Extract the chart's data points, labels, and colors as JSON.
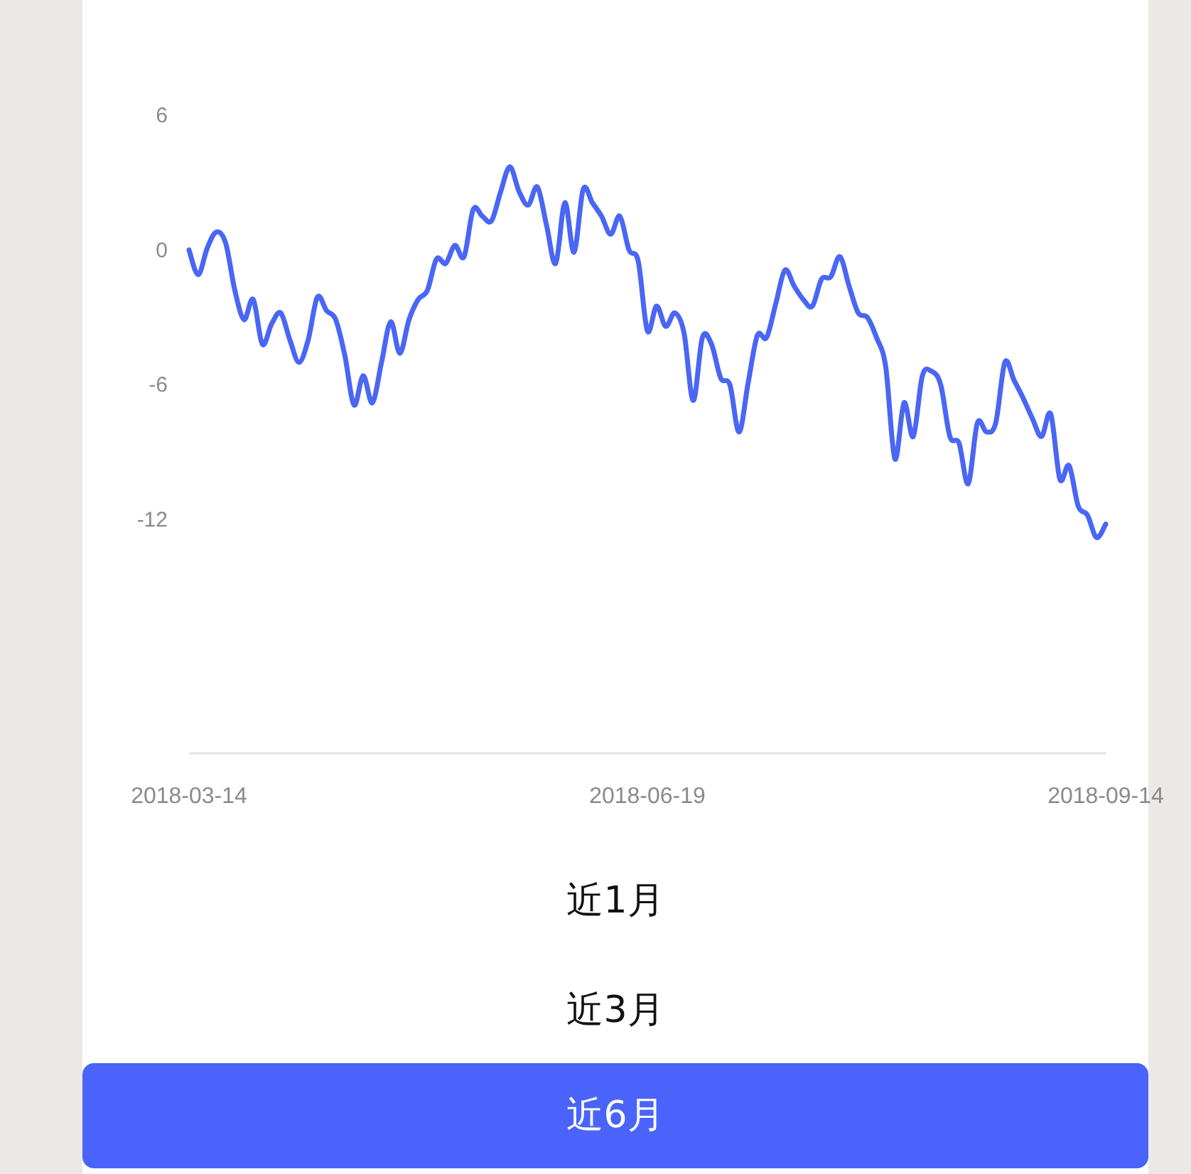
{
  "chart_data": {
    "type": "line",
    "categories": [
      "2018-03-14",
      null,
      null,
      null,
      null,
      null,
      null,
      null,
      null,
      null,
      null,
      null,
      null,
      null,
      null,
      null,
      null,
      null,
      null,
      null,
      null,
      null,
      null,
      null,
      null,
      null,
      null,
      null,
      null,
      null,
      null,
      null,
      null,
      null,
      null,
      null,
      null,
      null,
      null,
      null,
      null,
      null,
      null,
      null,
      null,
      null,
      null,
      null,
      null,
      null,
      "2018-06-19",
      null,
      null,
      null,
      null,
      null,
      null,
      null,
      null,
      null,
      null,
      null,
      null,
      null,
      null,
      null,
      null,
      null,
      null,
      null,
      null,
      null,
      null,
      null,
      null,
      null,
      null,
      null,
      null,
      null,
      null,
      null,
      null,
      null,
      null,
      null,
      null,
      null,
      null,
      null,
      null,
      null,
      null,
      null,
      null,
      null,
      null,
      null,
      null,
      null,
      "2018-09-14"
    ],
    "series": [
      {
        "color": "#4a66f5",
        "values": [
          0,
          -1.1,
          0.1,
          0.8,
          0.3,
          -1.8,
          -3.1,
          -2.2,
          -4.2,
          -3.3,
          -2.8,
          -4.0,
          -5.0,
          -4.0,
          -2.1,
          -2.7,
          -3.1,
          -4.7,
          -6.9,
          -5.6,
          -6.8,
          -5.0,
          -3.2,
          -4.6,
          -3.1,
          -2.2,
          -1.8,
          -0.4,
          -0.6,
          0.2,
          -0.3,
          1.8,
          1.5,
          1.3,
          2.6,
          3.7,
          2.6,
          2.0,
          2.8,
          1.1,
          -0.6,
          2.1,
          -0.1,
          2.7,
          2.1,
          1.5,
          0.7,
          1.5,
          0,
          -0.5,
          -3.6,
          -2.5,
          -3.4,
          -2.8,
          -3.7,
          -6.7,
          -3.9,
          -4.2,
          -5.7,
          -6.0,
          -8.1,
          -5.9,
          -3.8,
          -3.9,
          -2.4,
          -0.9,
          -1.6,
          -2.2,
          -2.5,
          -1.3,
          -1.2,
          -0.3,
          -1.6,
          -2.8,
          -3.0,
          -3.9,
          -5.2,
          -9.3,
          -6.8,
          -8.3,
          -5.6,
          -5.4,
          -6.0,
          -8.3,
          -8.6,
          -10.4,
          -7.7,
          -8.1,
          -7.7,
          -5.0,
          -5.8,
          -6.6,
          -7.5,
          -8.3,
          -7.3,
          -10.2,
          -9.6,
          -11.4,
          -11.8,
          -12.8,
          -12.2
        ]
      }
    ],
    "ylim": [
      -22.4,
      6
    ],
    "yticks": [
      -12,
      -6,
      0,
      6
    ],
    "annotations": [
      "近1月",
      "近3月",
      "近6月"
    ]
  }
}
